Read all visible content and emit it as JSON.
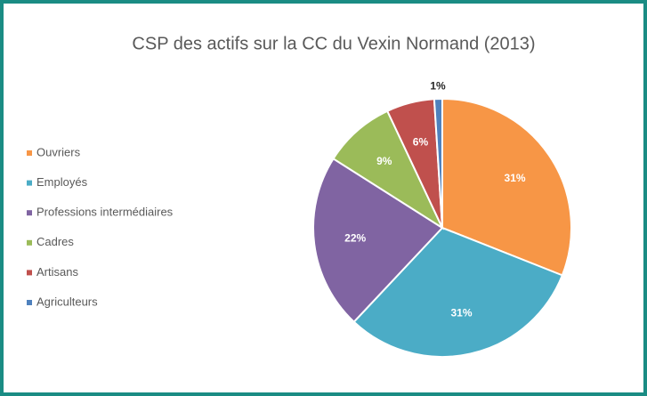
{
  "chart_data": {
    "type": "pie",
    "title": "CSP des actifs sur la CC du Vexin Normand (2013)",
    "categories": [
      "Ouvriers",
      "Employés",
      "Professions intermédiaires",
      "Cadres",
      "Artisans",
      "Agriculteurs"
    ],
    "values": [
      31,
      31,
      22,
      9,
      6,
      1
    ],
    "value_labels": [
      "31%",
      "31%",
      "22%",
      "9%",
      "6%",
      "1%"
    ],
    "colors": [
      "#f79646",
      "#4bacc6",
      "#8064a2",
      "#9bbb59",
      "#c0504d",
      "#4f81bd"
    ],
    "legend": "left"
  }
}
